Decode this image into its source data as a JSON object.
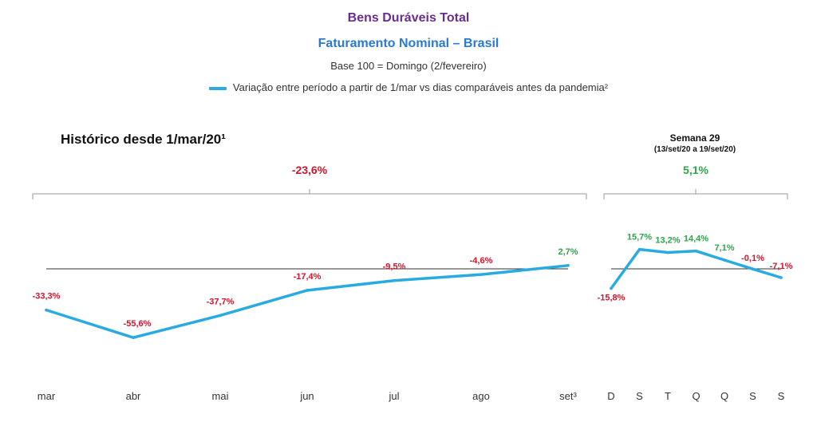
{
  "header": {
    "title": "Bens Duráveis Total",
    "subtitle": "Faturamento Nominal – Brasil",
    "base_note": "Base 100 = Domingo (2/fevereiro)",
    "legend_label": "Variação entre período a partir de 1/mar vs dias comparáveis antes da pandemia²"
  },
  "colors": {
    "line": "#29abe2",
    "negative": "#d4142a",
    "positive": "#2ca54a",
    "title": "#6a2c91",
    "subtitle": "#2a7ad0"
  },
  "chart_data": [
    {
      "type": "line",
      "title": "Histórico desde 1/mar/20¹",
      "total_label": "-23,6%",
      "total_value": -23.6,
      "categories": [
        "mar",
        "abr",
        "mai",
        "jun",
        "jul",
        "ago",
        "set³"
      ],
      "values": [
        -33.3,
        -55.6,
        -37.7,
        -17.4,
        -9.5,
        -4.6,
        2.7
      ],
      "value_labels": [
        "-33,3%",
        "-55,6%",
        "-37,7%",
        "-17,4%",
        "-9,5%",
        "-4,6%",
        "2,7%"
      ],
      "baseline": 0,
      "ylim": [
        -70,
        30
      ],
      "grid": false,
      "legend": "top-center"
    },
    {
      "type": "line",
      "title": "Semana 29",
      "subtitle": "(13/set/20 a 19/set/20)",
      "total_label": "5,1%",
      "total_value": 5.1,
      "categories": [
        "D",
        "S",
        "T",
        "Q",
        "Q",
        "S",
        "S"
      ],
      "values": [
        -15.8,
        15.7,
        13.2,
        14.4,
        7.1,
        -0.1,
        -7.1
      ],
      "value_labels": [
        "-15,8%",
        "15,7%",
        "13,2%",
        "14,4%",
        "7,1%",
        "-0,1%",
        "-7,1%"
      ],
      "baseline": 0,
      "ylim": [
        -70,
        30
      ],
      "grid": false
    }
  ]
}
